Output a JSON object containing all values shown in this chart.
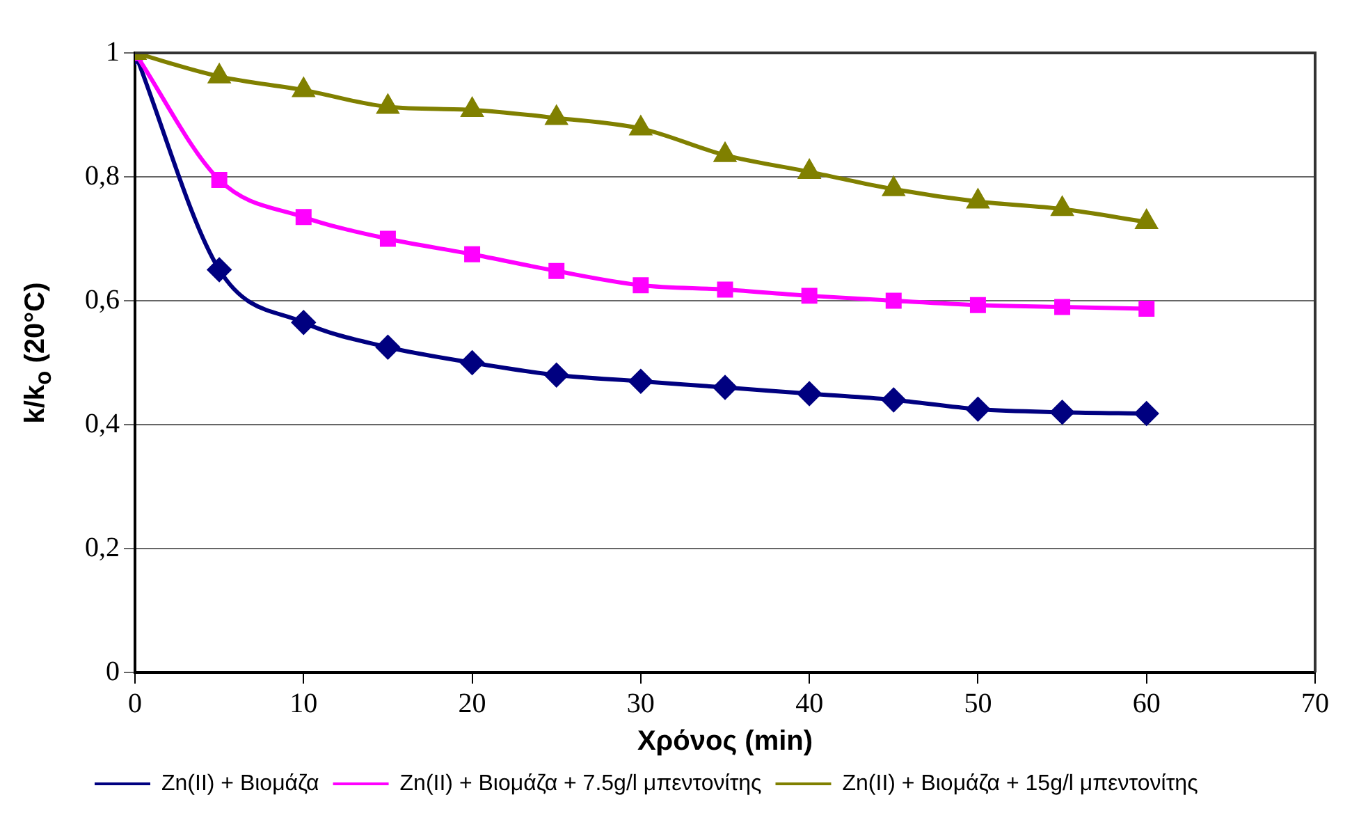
{
  "chart_data": {
    "type": "line",
    "xlabel": "Χρόνος (min)",
    "ylabel": "k/k$_{o}$ (20°C)",
    "x": [
      0,
      5,
      10,
      15,
      20,
      25,
      30,
      35,
      40,
      45,
      50,
      55,
      60
    ],
    "series": [
      {
        "name": "Zn(II) + Βιομάζα",
        "color": "#000080",
        "marker": "diamond",
        "values": [
          1,
          0.65,
          0.565,
          0.525,
          0.5,
          0.48,
          0.47,
          0.46,
          0.45,
          0.44,
          0.425,
          0.42,
          0.418
        ]
      },
      {
        "name": "Zn(II) + Βιομάζα + 7.5g/l μπεντονίτης",
        "color": "#ff00ff",
        "marker": "square",
        "values": [
          1,
          0.795,
          0.735,
          0.7,
          0.675,
          0.648,
          0.625,
          0.618,
          0.608,
          0.6,
          0.593,
          0.59,
          0.587
        ]
      },
      {
        "name": "Zn(II) + Βιομάζα + 15g/l μπεντονίτης",
        "color": "#808000",
        "marker": "triangle",
        "values": [
          1,
          0.962,
          0.94,
          0.913,
          0.908,
          0.895,
          0.878,
          0.835,
          0.808,
          0.78,
          0.76,
          0.748,
          0.727
        ]
      }
    ],
    "xlim": [
      0,
      70
    ],
    "xticks": [
      0,
      10,
      20,
      30,
      40,
      50,
      60,
      70
    ],
    "ylim": [
      0,
      1
    ],
    "yticks": [
      0,
      {
        "value": 0.2,
        "label": "0,2"
      },
      {
        "value": 0.4,
        "label": "0,4"
      },
      {
        "value": 0.6,
        "label": "0,6"
      },
      {
        "value": 0.8,
        "label": "0,8"
      },
      1
    ],
    "grid": "y",
    "legend": "bottom",
    "line_style": "solid"
  }
}
